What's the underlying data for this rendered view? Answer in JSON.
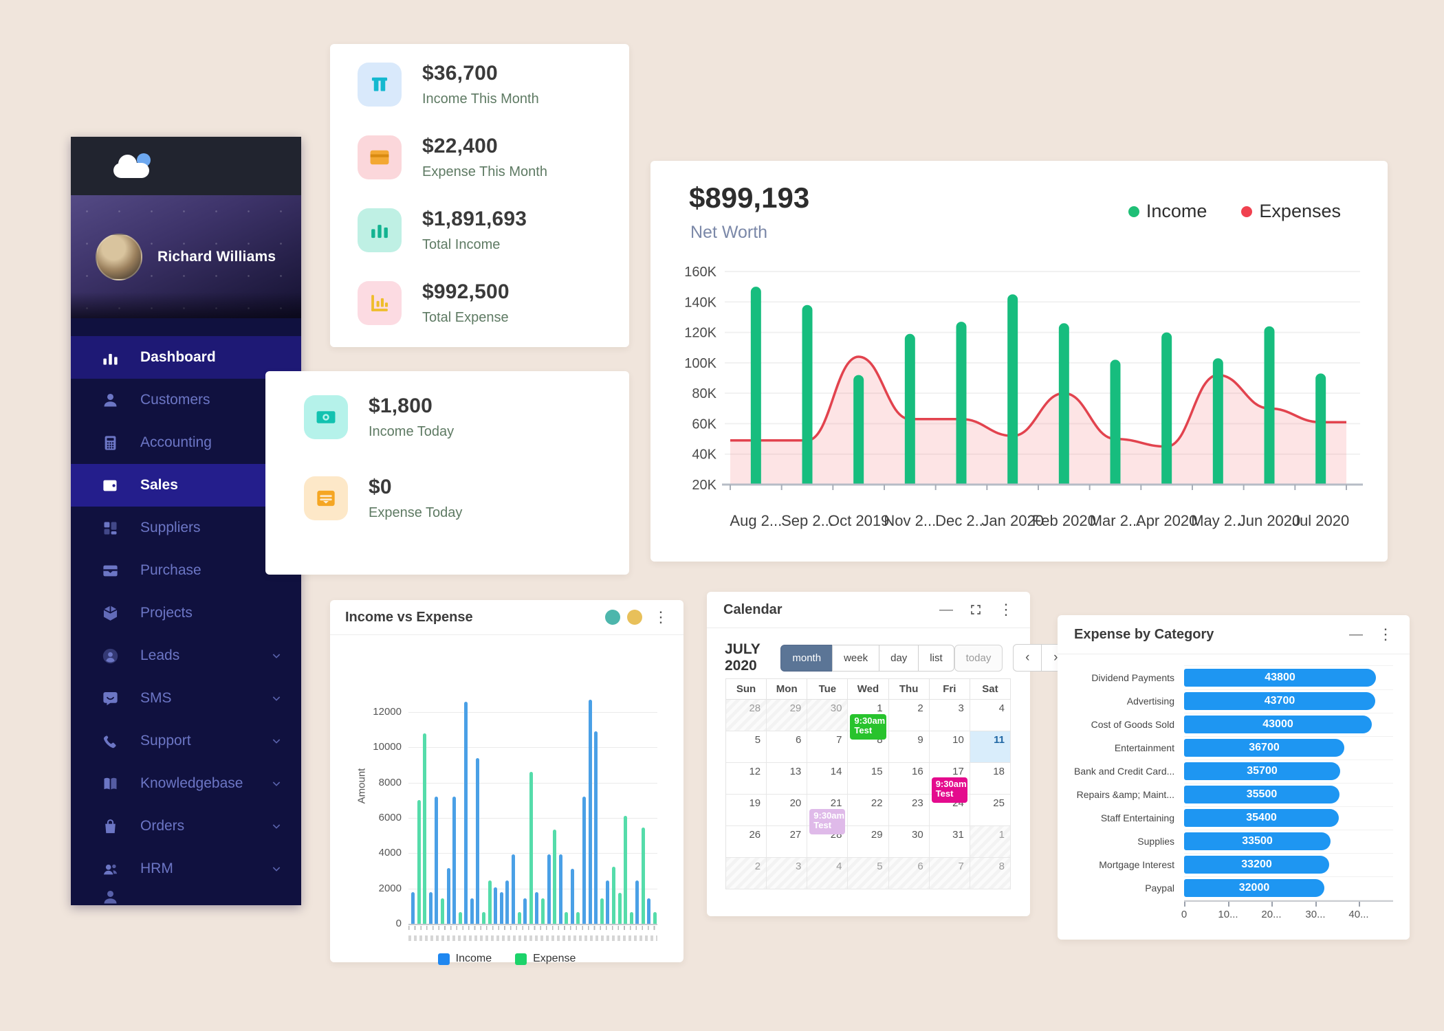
{
  "sidebar": {
    "user_name": "Richard Williams",
    "items": [
      {
        "label": "Dashboard",
        "icon": "bar-chart",
        "active": true,
        "chevron": false
      },
      {
        "label": "Customers",
        "icon": "user",
        "active": false,
        "chevron": false
      },
      {
        "label": "Accounting",
        "icon": "calculator",
        "active": false,
        "chevron": false
      },
      {
        "label": "Sales",
        "icon": "wallet",
        "active": true,
        "chevron": false
      },
      {
        "label": "Suppliers",
        "icon": "blocks",
        "active": false,
        "chevron": false
      },
      {
        "label": "Purchase",
        "icon": "purchase-wallet",
        "active": false,
        "chevron": true
      },
      {
        "label": "Projects",
        "icon": "cube",
        "active": false,
        "chevron": false
      },
      {
        "label": "Leads",
        "icon": "user-circle",
        "active": false,
        "chevron": true
      },
      {
        "label": "SMS",
        "icon": "chat",
        "active": false,
        "chevron": true
      },
      {
        "label": "Support",
        "icon": "phone",
        "active": false,
        "chevron": true
      },
      {
        "label": "Knowledgebase",
        "icon": "book",
        "active": false,
        "chevron": true
      },
      {
        "label": "Orders",
        "icon": "shopping-bag",
        "active": false,
        "chevron": true
      },
      {
        "label": "HRM",
        "icon": "people",
        "active": false,
        "chevron": true
      }
    ]
  },
  "monthly_stats": {
    "items": [
      {
        "value": "$36,700",
        "label": "Income This Month",
        "icon": "income-card",
        "icon_bg": "#d9e9fb",
        "icon_color": "#14b8cf"
      },
      {
        "value": "$22,400",
        "label": "Expense This Month",
        "icon": "credit-card",
        "icon_bg": "#fbd7db",
        "icon_color": "#f3a833"
      },
      {
        "value": "$1,891,693",
        "label": "Total Income",
        "icon": "chart-bars",
        "icon_bg": "#bff0e4",
        "icon_color": "#13b391"
      },
      {
        "value": "$992,500",
        "label": "Total Expense",
        "icon": "axis-chart",
        "icon_bg": "#fcdbe2",
        "icon_color": "#eebd2b"
      }
    ]
  },
  "today_stats": {
    "items": [
      {
        "value": "$1,800",
        "label": "Income Today",
        "icon": "cash",
        "icon_bg": "#b5f2ea",
        "icon_color": "#12c2b0"
      },
      {
        "value": "$0",
        "label": "Expense Today",
        "icon": "wallet-lines",
        "icon_bg": "#fde8c8",
        "icon_color": "#f5a623"
      }
    ]
  },
  "net_worth": {
    "value": "$899,193",
    "label": "Net Worth",
    "legend": [
      {
        "name": "Income",
        "color": "#1fbf76"
      },
      {
        "name": "Expenses",
        "color": "#f0414f"
      }
    ],
    "chart_data": {
      "type": "bar",
      "categories": [
        "Aug 2...",
        "Sep 2...",
        "Oct 2019",
        "Nov 2...",
        "Dec 2...",
        "Jan 2020",
        "Feb 2020",
        "Mar 2...",
        "Apr 2020",
        "May 2...",
        "Jun 2020",
        "Jul 2020"
      ],
      "series": [
        {
          "name": "Income",
          "type": "bar",
          "color": "#17bd7e",
          "values": [
            150000,
            138000,
            92000,
            119000,
            127000,
            145000,
            126000,
            102000,
            120000,
            103000,
            124000,
            93000
          ]
        },
        {
          "name": "Expenses",
          "type": "area-line",
          "color": "#e2434e",
          "fill": "rgba(240,85,95,0.16)",
          "values": [
            49000,
            49000,
            104000,
            63000,
            63000,
            52000,
            80000,
            50000,
            45000,
            92000,
            70000,
            61000
          ]
        }
      ],
      "ylim": [
        20000,
        160000
      ],
      "yticks": [
        "160K",
        "140K",
        "120K",
        "100K",
        "80K",
        "60K",
        "40K",
        "20K"
      ],
      "grid": true,
      "legend_position": "top-right"
    }
  },
  "income_vs_expense": {
    "title": "Income vs Expense",
    "header_dots": [
      "#4db6ac",
      "#e8c05a"
    ],
    "kebab_icon": "⋮",
    "chart_data": {
      "type": "bar",
      "ylabel": "Amount",
      "ylim": [
        0,
        12000
      ],
      "yticks": [
        "12000",
        "10000",
        "8000",
        "6000",
        "4000",
        "2000",
        "0"
      ],
      "legend": [
        {
          "name": "Income",
          "color": "#1f87f0"
        },
        {
          "name": "Expense",
          "color": "#1cd36a"
        }
      ],
      "bars": [
        [
          "i",
          1800
        ],
        [
          "e",
          7000
        ],
        [
          "e",
          10800
        ],
        [
          "i",
          1800
        ],
        [
          "i",
          7200
        ],
        [
          "e",
          1450
        ],
        [
          "i",
          3150
        ],
        [
          "i",
          7200
        ],
        [
          "e",
          650
        ],
        [
          "i",
          12600
        ],
        [
          "i",
          1450
        ],
        [
          "i",
          9400
        ],
        [
          "e",
          650
        ],
        [
          "e",
          2450
        ],
        [
          "i",
          2050
        ],
        [
          "i",
          1800
        ],
        [
          "i",
          2450
        ],
        [
          "i",
          3950
        ],
        [
          "e",
          650
        ],
        [
          "i",
          1450
        ],
        [
          "e",
          8600
        ],
        [
          "i",
          1800
        ],
        [
          "e",
          1450
        ],
        [
          "i",
          3950
        ],
        [
          "e",
          5350
        ],
        [
          "i",
          3950
        ],
        [
          "e",
          650
        ],
        [
          "i",
          3100
        ],
        [
          "e",
          650
        ],
        [
          "i",
          7200
        ],
        [
          "i",
          12700
        ],
        [
          "i",
          10900
        ],
        [
          "e",
          1450
        ],
        [
          "i",
          2450
        ],
        [
          "e",
          3250
        ],
        [
          "e",
          1750
        ],
        [
          "e",
          6100
        ],
        [
          "e",
          650
        ],
        [
          "i",
          2450
        ],
        [
          "e",
          5450
        ],
        [
          "i",
          1450
        ],
        [
          "e",
          650
        ]
      ]
    }
  },
  "calendar": {
    "title": "Calendar",
    "minimize_icon": "—",
    "kebab_icon": "⋮",
    "month_label": "JULY 2020",
    "views": [
      {
        "label": "month",
        "active": true
      },
      {
        "label": "week",
        "active": false
      },
      {
        "label": "day",
        "active": false
      },
      {
        "label": "list",
        "active": false
      }
    ],
    "today_label": "today",
    "prev_icon": "‹",
    "next_icon": "›",
    "day_headers": [
      "Sun",
      "Mon",
      "Tue",
      "Wed",
      "Thu",
      "Fri",
      "Sat"
    ],
    "weeks": [
      [
        {
          "d": 28,
          "o": 1
        },
        {
          "d": 29,
          "o": 1
        },
        {
          "d": 30,
          "o": 1
        },
        {
          "d": 1
        },
        {
          "d": 2
        },
        {
          "d": 3
        },
        {
          "d": 4
        }
      ],
      [
        {
          "d": 5
        },
        {
          "d": 6
        },
        {
          "d": 7
        },
        {
          "d": 8
        },
        {
          "d": 9
        },
        {
          "d": 10
        },
        {
          "d": 11,
          "t": 1
        }
      ],
      [
        {
          "d": 12
        },
        {
          "d": 13
        },
        {
          "d": 14
        },
        {
          "d": 15
        },
        {
          "d": 16
        },
        {
          "d": 17
        },
        {
          "d": 18
        }
      ],
      [
        {
          "d": 19
        },
        {
          "d": 20
        },
        {
          "d": 21
        },
        {
          "d": 22
        },
        {
          "d": 23
        },
        {
          "d": 24
        },
        {
          "d": 25
        }
      ],
      [
        {
          "d": 26
        },
        {
          "d": 27
        },
        {
          "d": 28
        },
        {
          "d": 29
        },
        {
          "d": 30
        },
        {
          "d": 31
        },
        {
          "d": 1,
          "o": 1
        }
      ],
      [
        {
          "d": 2,
          "o": 1
        },
        {
          "d": 3,
          "o": 1
        },
        {
          "d": 4,
          "o": 1
        },
        {
          "d": 5,
          "o": 1
        },
        {
          "d": 6,
          "o": 1
        },
        {
          "d": 7,
          "o": 1
        },
        {
          "d": 8,
          "o": 1
        }
      ]
    ],
    "events": [
      {
        "week": 0,
        "day": 3,
        "time": "9:30am",
        "title": "Test",
        "color": "#28c32d"
      },
      {
        "week": 2,
        "day": 5,
        "time": "9:30am",
        "title": "Test",
        "color": "#e40b8d"
      },
      {
        "week": 3,
        "day": 2,
        "time": "9:30am",
        "title": "Test",
        "color": "#dfbae9"
      }
    ]
  },
  "expense_by_category": {
    "title": "Expense by Category",
    "minimize_icon": "—",
    "kebab_icon": "⋮",
    "chart_data": {
      "type": "bar-horizontal",
      "bar_color": "#1e96f2",
      "categories": [
        "Dividend Payments",
        "Advertising",
        "Cost of Goods Sold",
        "Entertainment",
        "Bank and Credit Card...",
        "Repairs &amp; Maint...",
        "Staff Entertaining",
        "Supplies",
        "Mortgage Interest",
        "Paypal"
      ],
      "values": [
        43800,
        43700,
        43000,
        36700,
        35700,
        35500,
        35400,
        33500,
        33200,
        32000
      ],
      "xlim": [
        0,
        50000
      ],
      "xticks": [
        "0",
        "10...",
        "20...",
        "30...",
        "40..."
      ]
    }
  }
}
